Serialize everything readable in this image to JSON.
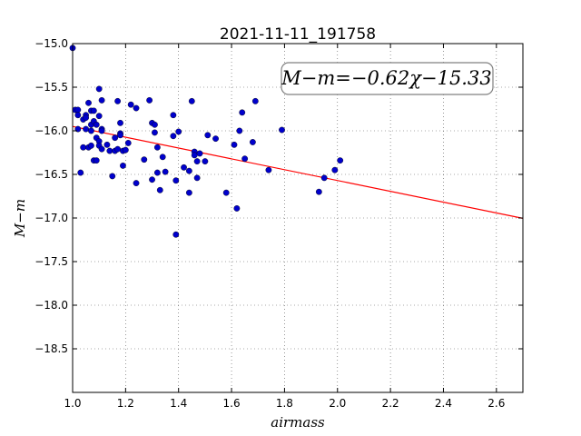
{
  "chart_data": {
    "type": "scatter",
    "title": "2021-11-11_191758",
    "xlabel": "airmass",
    "ylabel": "M−m",
    "annotation": "M−m=−0.62χ−15.33",
    "xlim": [
      1.0,
      2.7
    ],
    "ylim": [
      -15.0,
      -19.0
    ],
    "y_inverted": true,
    "grid": true,
    "x_ticks": [
      1.0,
      1.2,
      1.4,
      1.6,
      1.8,
      2.0,
      2.2,
      2.4,
      2.6
    ],
    "x_tick_labels": [
      "1.0",
      "1.2",
      "1.4",
      "1.6",
      "1.8",
      "2.0",
      "2.2",
      "2.4",
      "2.6"
    ],
    "y_ticks": [
      -15.0,
      -15.5,
      -16.0,
      -16.5,
      -17.0,
      -17.5,
      -18.0,
      -18.5
    ],
    "y_tick_labels": [
      "−15.0",
      "−15.5",
      "−16.0",
      "−16.5",
      "−17.0",
      "−17.5",
      "−18.0",
      "−18.5"
    ],
    "fit": {
      "slope": -0.62,
      "intercept": -15.33,
      "color": "#ff0000"
    },
    "point_color": "#0000cc",
    "points": [
      [
        1.0,
        -15.05
      ],
      [
        1.01,
        -15.76
      ],
      [
        1.02,
        -15.76
      ],
      [
        1.02,
        -15.82
      ],
      [
        1.02,
        -15.98
      ],
      [
        1.03,
        -16.48
      ],
      [
        1.04,
        -15.87
      ],
      [
        1.05,
        -15.82
      ],
      [
        1.05,
        -15.85
      ],
      [
        1.04,
        -16.19
      ],
      [
        1.05,
        -15.98
      ],
      [
        1.06,
        -15.68
      ],
      [
        1.06,
        -16.19
      ],
      [
        1.07,
        -15.93
      ],
      [
        1.07,
        -16.0
      ],
      [
        1.07,
        -16.17
      ],
      [
        1.07,
        -15.77
      ],
      [
        1.08,
        -15.89
      ],
      [
        1.08,
        -15.77
      ],
      [
        1.08,
        -16.34
      ],
      [
        1.09,
        -16.34
      ],
      [
        1.09,
        -16.08
      ],
      [
        1.09,
        -15.93
      ],
      [
        1.1,
        -15.52
      ],
      [
        1.1,
        -15.83
      ],
      [
        1.1,
        -16.12
      ],
      [
        1.1,
        -16.17
      ],
      [
        1.11,
        -15.98
      ],
      [
        1.11,
        -16.0
      ],
      [
        1.11,
        -16.21
      ],
      [
        1.11,
        -15.65
      ],
      [
        1.13,
        -16.16
      ],
      [
        1.14,
        -16.23
      ],
      [
        1.15,
        -16.52
      ],
      [
        1.16,
        -16.23
      ],
      [
        1.16,
        -16.08
      ],
      [
        1.17,
        -15.66
      ],
      [
        1.17,
        -16.21
      ],
      [
        1.18,
        -15.91
      ],
      [
        1.18,
        -16.03
      ],
      [
        1.18,
        -16.05
      ],
      [
        1.19,
        -16.4
      ],
      [
        1.19,
        -16.23
      ],
      [
        1.2,
        -16.22
      ],
      [
        1.21,
        -16.14
      ],
      [
        1.22,
        -15.7
      ],
      [
        1.24,
        -15.74
      ],
      [
        1.24,
        -16.6
      ],
      [
        1.27,
        -16.33
      ],
      [
        1.29,
        -15.65
      ],
      [
        1.3,
        -15.91
      ],
      [
        1.3,
        -16.56
      ],
      [
        1.31,
        -15.93
      ],
      [
        1.31,
        -16.02
      ],
      [
        1.32,
        -16.19
      ],
      [
        1.32,
        -16.48
      ],
      [
        1.33,
        -16.68
      ],
      [
        1.34,
        -16.3
      ],
      [
        1.35,
        -16.47
      ],
      [
        1.38,
        -15.82
      ],
      [
        1.38,
        -16.06
      ],
      [
        1.39,
        -17.19
      ],
      [
        1.39,
        -16.57
      ],
      [
        1.4,
        -16.01
      ],
      [
        1.42,
        -16.42
      ],
      [
        1.44,
        -16.46
      ],
      [
        1.44,
        -16.71
      ],
      [
        1.45,
        -15.66
      ],
      [
        1.46,
        -16.24
      ],
      [
        1.46,
        -16.28
      ],
      [
        1.47,
        -16.35
      ],
      [
        1.47,
        -16.54
      ],
      [
        1.48,
        -16.26
      ],
      [
        1.5,
        -16.35
      ],
      [
        1.51,
        -16.05
      ],
      [
        1.54,
        -16.09
      ],
      [
        1.58,
        -16.71
      ],
      [
        1.61,
        -16.16
      ],
      [
        1.62,
        -16.89
      ],
      [
        1.63,
        -16.0
      ],
      [
        1.64,
        -15.79
      ],
      [
        1.65,
        -16.32
      ],
      [
        1.68,
        -16.13
      ],
      [
        1.69,
        -15.66
      ],
      [
        1.74,
        -16.45
      ],
      [
        1.79,
        -15.99
      ],
      [
        1.93,
        -16.7
      ],
      [
        1.95,
        -16.54
      ],
      [
        1.99,
        -16.45
      ],
      [
        2.01,
        -16.34
      ]
    ]
  }
}
